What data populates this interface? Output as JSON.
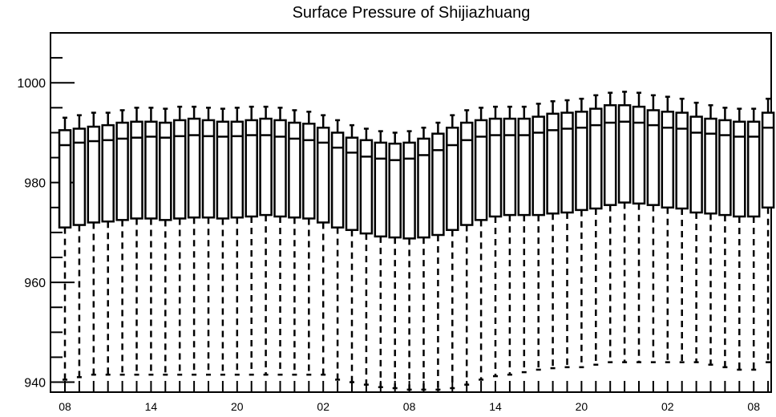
{
  "chart_data": {
    "type": "boxplot",
    "title": "Surface Pressure of Shijiazhuang",
    "xlabel": "",
    "ylabel": "",
    "ylim": [
      938,
      1010
    ],
    "y_ticks": [
      940,
      960,
      980,
      1000
    ],
    "x_tick_labels": [
      "08",
      "14",
      "20",
      "02",
      "08",
      "14",
      "20",
      "02",
      "08"
    ],
    "x_tick_indices": [
      0,
      6,
      12,
      18,
      24,
      30,
      36,
      42,
      48
    ],
    "grid": false,
    "series": [
      {
        "whisker_low": [
          940.5,
          941,
          941.5,
          941.5,
          941.5,
          941.5,
          941.5,
          941.5,
          941.5,
          941.5,
          941.5,
          941.5,
          941.5,
          941.5,
          941.5,
          941.5,
          941.5,
          941.5,
          941.5,
          940.5,
          940,
          939.5,
          939,
          938.8,
          938.5,
          938.5,
          938.5,
          938.8,
          939.5,
          940.5,
          941.2,
          941.5,
          942,
          942.5,
          942.8,
          943,
          943,
          943.5,
          944,
          944,
          944,
          944,
          944,
          944,
          944,
          943.5,
          943,
          942.5,
          942.5,
          944
        ],
        "q1": [
          971,
          971.5,
          972,
          972.2,
          972.5,
          972.8,
          972.8,
          972.5,
          972.8,
          973,
          973,
          972.8,
          973,
          973.2,
          973.5,
          973.2,
          973,
          972.8,
          972,
          971,
          970.5,
          969.8,
          969.2,
          969,
          968.8,
          969,
          969.5,
          970.5,
          971.5,
          972.5,
          973.2,
          973.5,
          973.5,
          973.5,
          973.8,
          974,
          974.5,
          974.8,
          975.5,
          976,
          975.8,
          975.5,
          975,
          974.8,
          974,
          973.8,
          973.5,
          973.2,
          973.2,
          975
        ],
        "median": [
          987.5,
          988,
          988.3,
          988.5,
          988.8,
          989,
          989.2,
          989,
          989.3,
          989.5,
          989.3,
          989.2,
          989.3,
          989.5,
          989.5,
          989.2,
          988.8,
          988.5,
          988,
          987,
          986,
          985.2,
          984.8,
          984.5,
          984.8,
          985.5,
          986.5,
          987.5,
          988.5,
          989.2,
          989.5,
          989.5,
          989.5,
          990,
          990.5,
          990.8,
          991,
          991.5,
          992,
          992.2,
          992,
          991.5,
          991,
          990.8,
          990,
          989.8,
          989.5,
          989.2,
          989.2,
          991
        ],
        "q3": [
          990.5,
          990.8,
          991.2,
          991.5,
          992,
          992.2,
          992.2,
          992,
          992.5,
          992.8,
          992.5,
          992.2,
          992.2,
          992.5,
          992.8,
          992.5,
          992,
          991.8,
          991,
          990,
          989,
          988.5,
          988,
          987.8,
          988,
          988.8,
          989.8,
          991,
          992,
          992.5,
          992.8,
          992.8,
          992.8,
          993.2,
          993.8,
          994,
          994.2,
          994.8,
          995.5,
          995.5,
          995.2,
          994.5,
          994.2,
          994,
          993.2,
          992.8,
          992.5,
          992.2,
          992.2,
          994
        ],
        "whisker_high": [
          993,
          993.5,
          994,
          994,
          994.5,
          995,
          995,
          994.8,
          995.2,
          995.2,
          995,
          994.8,
          995,
          995.2,
          995.2,
          995,
          994.5,
          994.2,
          993.5,
          992.5,
          991.5,
          990.8,
          990.3,
          990,
          990.3,
          991,
          992,
          993.5,
          994.5,
          995,
          995.2,
          995.2,
          995.2,
          995.8,
          996.3,
          996.5,
          996.8,
          997.5,
          998,
          998.2,
          998,
          997.5,
          997.2,
          996.8,
          996,
          995.5,
          995,
          994.8,
          994.8,
          996.8
        ]
      }
    ]
  }
}
